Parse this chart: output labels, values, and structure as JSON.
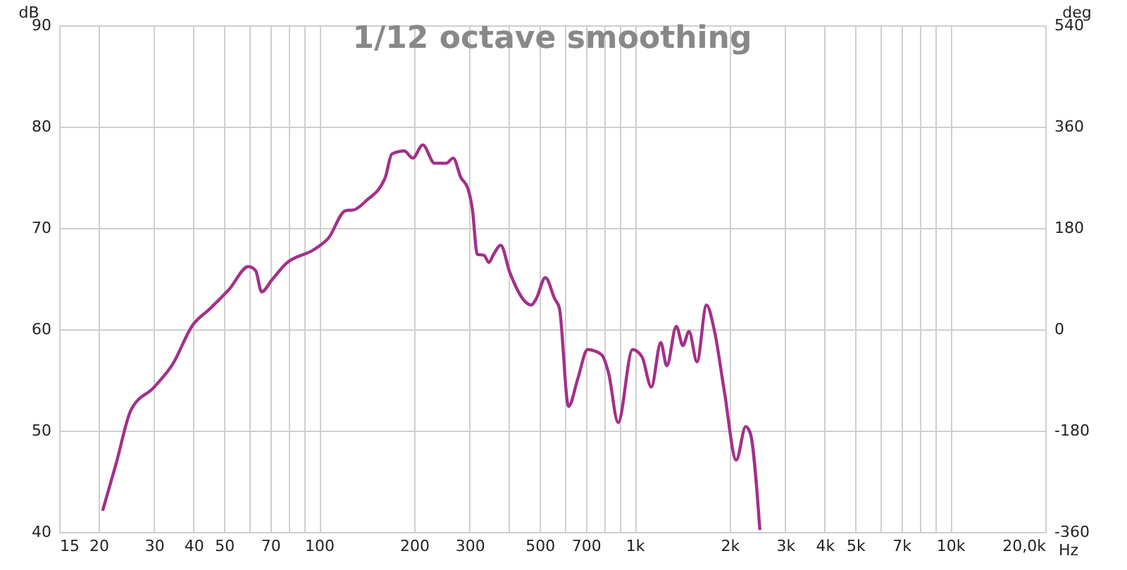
{
  "chart_data": {
    "type": "line",
    "title": "1/12 octave smoothing",
    "xlabel": "Hz",
    "ylabel": "dB",
    "y2label": "deg",
    "log": "x",
    "grid": true,
    "xlim": [
      15,
      20000
    ],
    "xticks": [
      15,
      20,
      30,
      40,
      50,
      {
        "value": 60,
        "label": null
      },
      70,
      {
        "value": 80,
        "label": null
      },
      {
        "value": 90,
        "label": null
      },
      100,
      200,
      300,
      {
        "value": 400,
        "label": null
      },
      500,
      {
        "value": 600,
        "label": null
      },
      700,
      {
        "value": 800,
        "label": null
      },
      {
        "value": 900,
        "label": null
      },
      {
        "value": 1000,
        "label": "1k"
      },
      {
        "value": 2000,
        "label": "2k"
      },
      {
        "value": 3000,
        "label": "3k"
      },
      {
        "value": 4000,
        "label": "4k"
      },
      {
        "value": 5000,
        "label": "5k"
      },
      {
        "value": 6000,
        "label": null
      },
      {
        "value": 7000,
        "label": "7k"
      },
      {
        "value": 8000,
        "label": null
      },
      {
        "value": 9000,
        "label": null
      },
      {
        "value": 10000,
        "label": "10k"
      },
      {
        "value": 20000,
        "label": "20,0k"
      }
    ],
    "ylim": [
      40,
      90
    ],
    "yticks": [
      40,
      50,
      60,
      70,
      80,
      90
    ],
    "y2lim": [
      -360,
      540
    ],
    "y2ticks": [
      -360,
      -180,
      0,
      180,
      360,
      540
    ],
    "series": [
      {
        "color": "#a3308a",
        "x": [
          20.6,
          22.8,
          25.3,
          30,
          34.4,
          39.5,
          45.3,
          52,
          59.7,
          62.9,
          65.7,
          70.9,
          78.6,
          96.6,
          107,
          121,
          129,
          141,
          162,
          170,
          186,
          198,
          213,
          232,
          253,
          266,
          281,
          296,
          306,
          317,
          333,
          345,
          357,
          376,
          402,
          470,
          487,
          521,
          558,
          577,
          617,
          661,
          709,
          785,
          826,
          886,
          984,
          1054,
          1129,
          1209,
          1264,
          1354,
          1421,
          1486,
          1575,
          1688,
          1785,
          1925,
          2098,
          2247,
          2326,
          2492
        ],
        "values": [
          42.1,
          46.9,
          52.0,
          54.3,
          56.6,
          60.3,
          62.1,
          64.0,
          66.2,
          65.8,
          63.7,
          64.9,
          66.5,
          67.9,
          69.0,
          71.7,
          71.8,
          72.7,
          75.0,
          77.3,
          77.6,
          76.9,
          78.2,
          76.4,
          76.4,
          76.9,
          75.0,
          73.9,
          71.8,
          67.4,
          67.3,
          66.6,
          67.4,
          68.3,
          65.6,
          62.4,
          63.0,
          65.1,
          63.0,
          62.1,
          52.4,
          55.2,
          58.0,
          57.5,
          55.7,
          50.8,
          58.0,
          57.3,
          54.3,
          58.7,
          56.4,
          60.3,
          58.4,
          59.8,
          56.8,
          62.4,
          60.0,
          53.8,
          47.1,
          50.4,
          49.7,
          40.2
        ]
      }
    ]
  }
}
